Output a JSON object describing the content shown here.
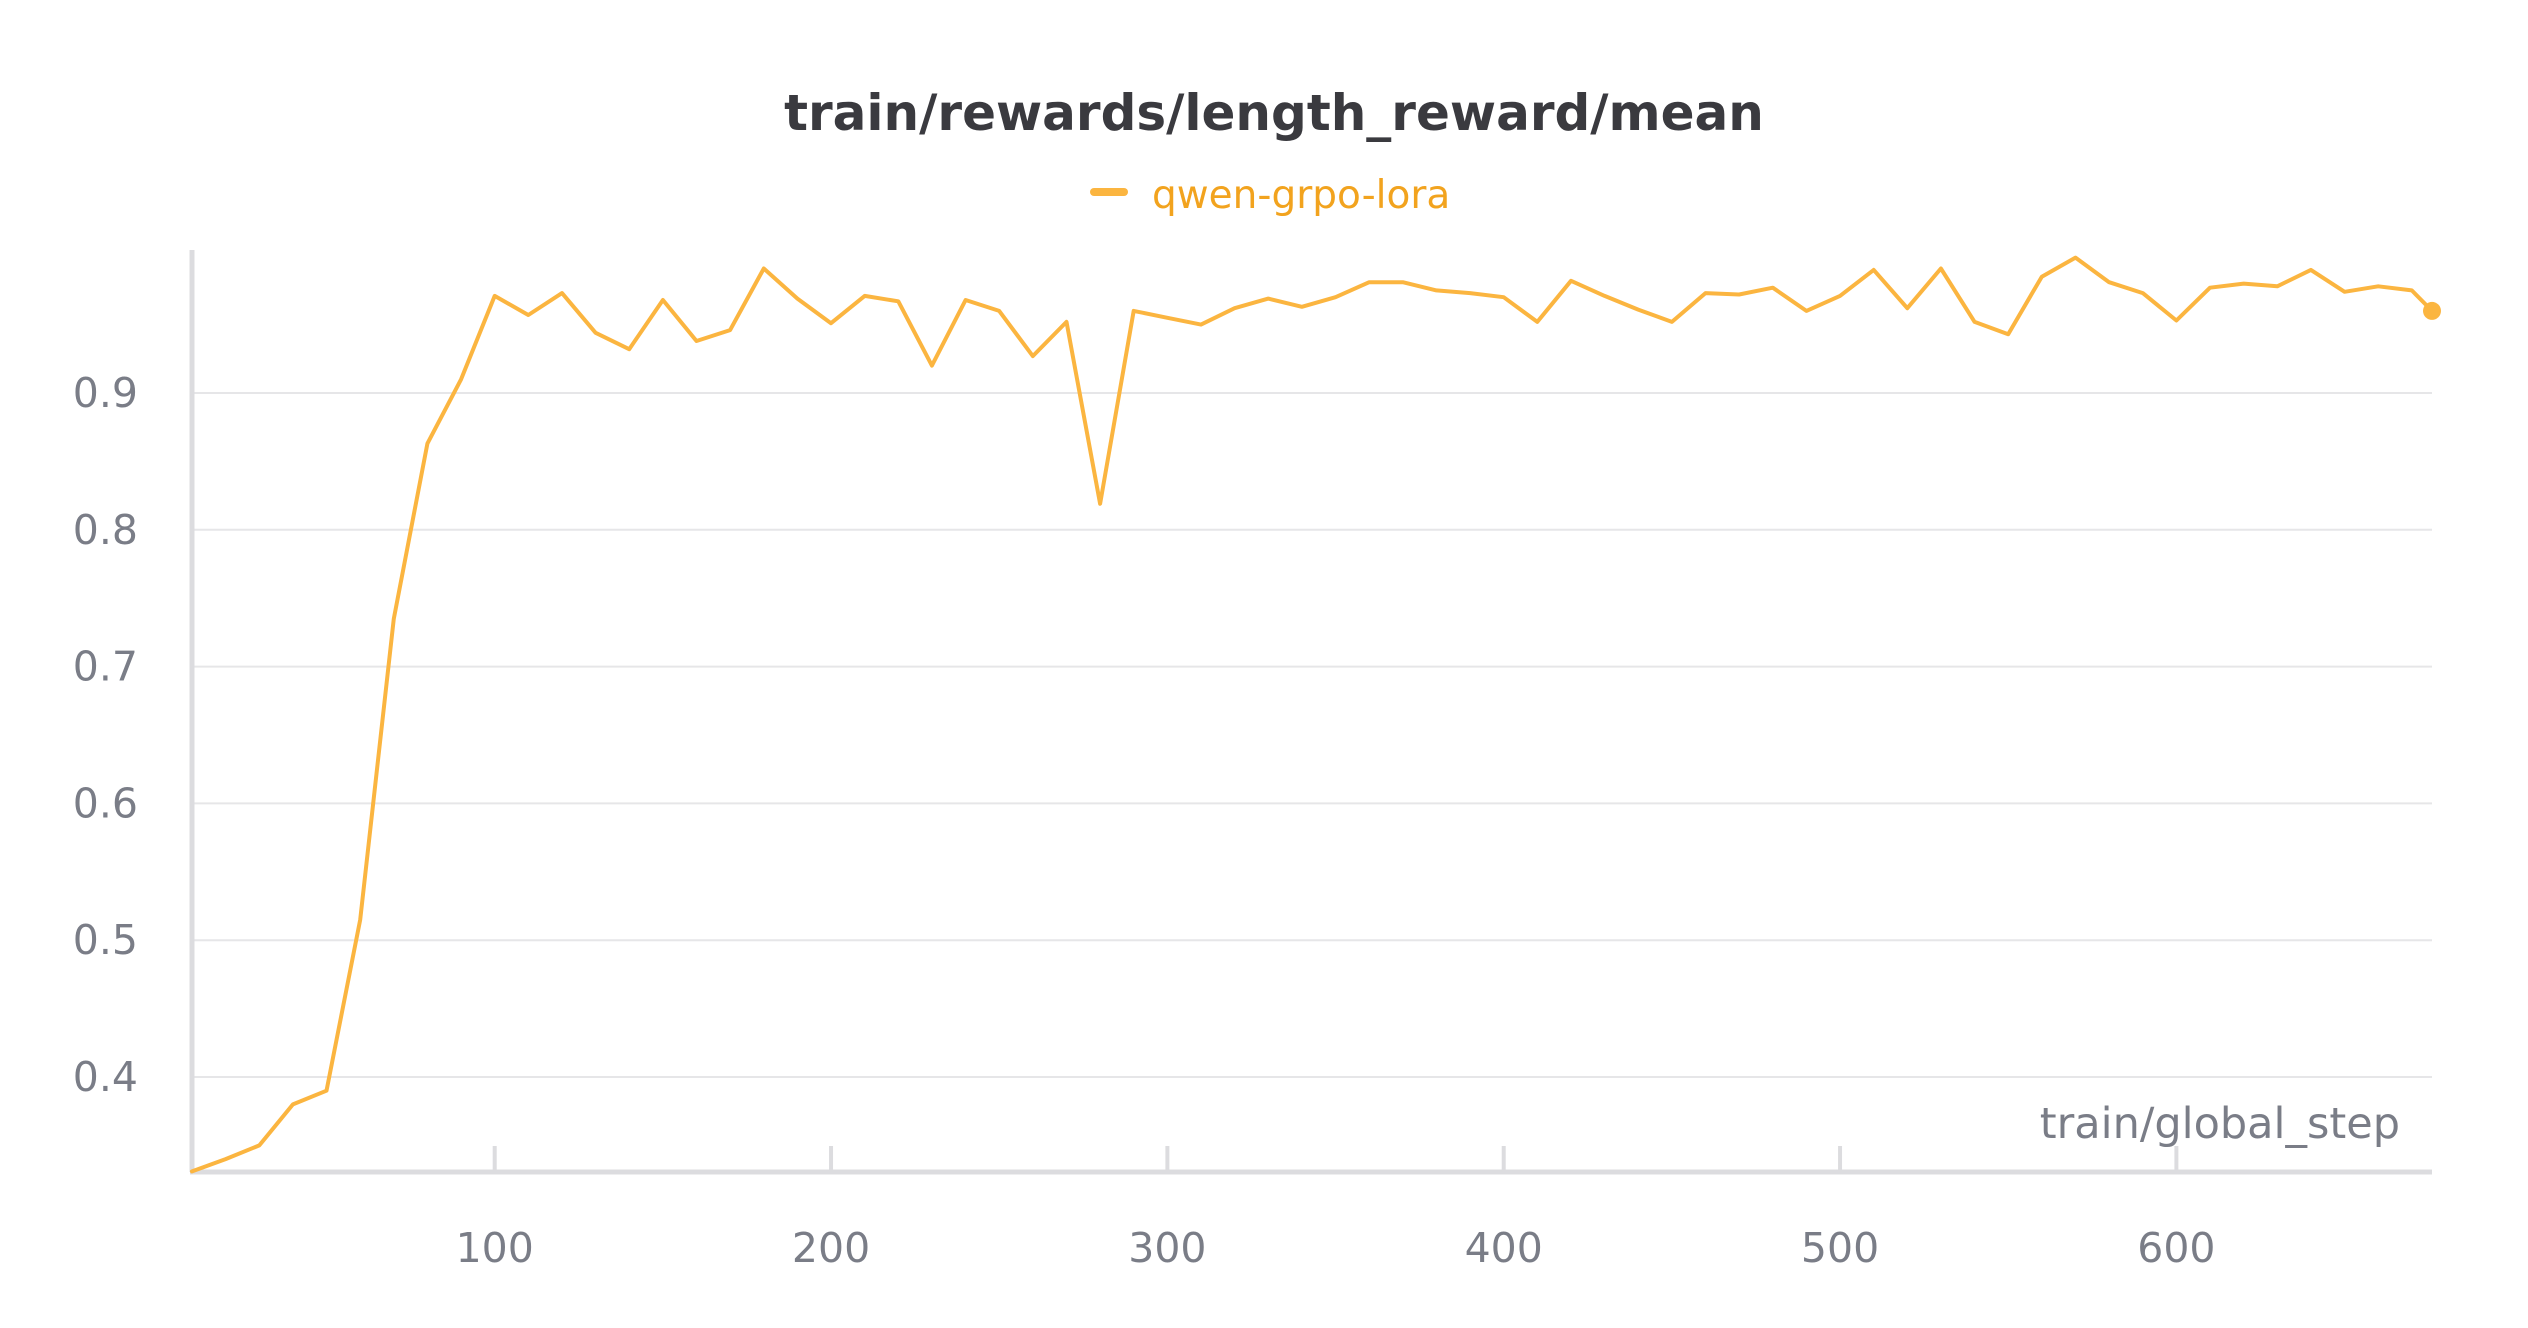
{
  "chart_data": {
    "type": "line",
    "title": "train/rewards/length_reward/mean",
    "xlabel": "train/global_step",
    "ylabel": "",
    "xlim": [
      10,
      676
    ],
    "ylim": [
      0.331,
      0.99
    ],
    "x_ticks": [
      100,
      200,
      300,
      400,
      500,
      600
    ],
    "x_tick_labels": [
      "100",
      "200",
      "300",
      "400",
      "500",
      "600"
    ],
    "y_ticks": [
      0.4,
      0.5,
      0.6,
      0.7,
      0.8,
      0.9
    ],
    "y_tick_labels": [
      "0.4",
      "0.5",
      "0.6",
      "0.7",
      "0.8",
      "0.9"
    ],
    "grid": true,
    "legend_position": "top-center",
    "series": [
      {
        "name": "qwen-grpo-lora",
        "color": "#fbb540",
        "label_color": "#f2a31e",
        "x": [
          10,
          20,
          30,
          40,
          50,
          60,
          70,
          80,
          90,
          100,
          110,
          120,
          130,
          140,
          150,
          160,
          170,
          180,
          190,
          200,
          210,
          220,
          230,
          240,
          250,
          260,
          270,
          280,
          290,
          300,
          310,
          320,
          330,
          340,
          350,
          360,
          370,
          380,
          390,
          400,
          410,
          420,
          430,
          440,
          450,
          460,
          470,
          480,
          490,
          500,
          510,
          520,
          530,
          540,
          550,
          560,
          570,
          580,
          590,
          600,
          610,
          620,
          630,
          640,
          650,
          660,
          670,
          676
        ],
        "y": [
          0.331,
          0.34,
          0.35,
          0.38,
          0.39,
          0.515,
          0.735,
          0.863,
          0.91,
          0.971,
          0.957,
          0.973,
          0.944,
          0.932,
          0.968,
          0.938,
          0.946,
          0.991,
          0.969,
          0.951,
          0.971,
          0.967,
          0.92,
          0.968,
          0.96,
          0.927,
          0.952,
          0.819,
          0.96,
          0.955,
          0.95,
          0.962,
          0.969,
          0.963,
          0.97,
          0.981,
          0.981,
          0.975,
          0.973,
          0.97,
          0.952,
          0.982,
          0.971,
          0.961,
          0.952,
          0.973,
          0.972,
          0.977,
          0.96,
          0.971,
          0.99,
          0.962,
          0.991,
          0.952,
          0.943,
          0.985,
          0.999,
          0.981,
          0.973,
          0.953,
          0.977,
          0.98,
          0.978,
          0.99,
          0.974,
          0.978,
          0.975,
          0.96
        ]
      }
    ]
  }
}
